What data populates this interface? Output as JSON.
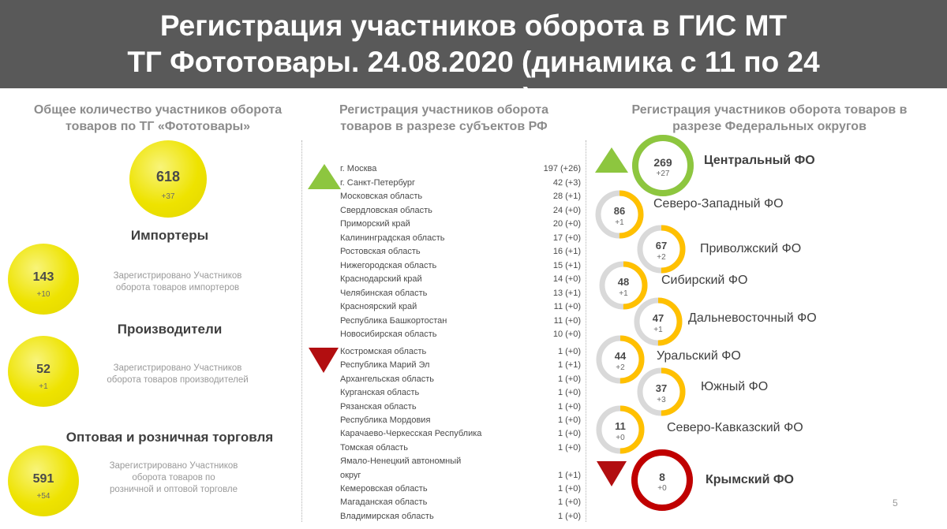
{
  "header": {
    "title_line1": "Регистрация участников оборота в ГИС МТ",
    "title_line2": "ТГ Фототовары. 24.08.2020 (динамика с 11 по 24",
    "title_line3": "августа)"
  },
  "left": {
    "title_line1": "Общее количество участников оборота",
    "title_line2": "товаров по ТГ «Фототовары»",
    "total": {
      "value": "618",
      "delta": "+37"
    },
    "sections": [
      {
        "heading": "Импортеры",
        "value": "143",
        "delta": "+10",
        "desc_line1": "Зарегистрировано Участников",
        "desc_line2": "оборота товаров импортеров",
        "desc_line3": ""
      },
      {
        "heading": "Производители",
        "value": "52",
        "delta": "+1",
        "desc_line1": "Зарегистрировано Участников",
        "desc_line2": "оборота товаров производителей",
        "desc_line3": ""
      },
      {
        "heading": "Оптовая и розничная торговля",
        "value": "591",
        "delta": "+54",
        "desc_line1": "Зарегистрировано Участников",
        "desc_line2": "оборота товаров по",
        "desc_line3": "розничной и оптовой торговле"
      }
    ]
  },
  "middle": {
    "title_line1": "Регистрация участников оборота",
    "title_line2": "товаров в разрезе субъектов РФ",
    "top_regions": [
      {
        "name": "г. Москва",
        "value": "197 (+26)"
      },
      {
        "name": "г. Санкт-Петербург",
        "value": "42 (+3)"
      },
      {
        "name": "Московская область",
        "value": "28 (+1)"
      },
      {
        "name": "Свердловская область",
        "value": "24 (+0)"
      },
      {
        "name": "Приморский край",
        "value": "20 (+0)"
      },
      {
        "name": "Калининградская область",
        "value": "17 (+0)"
      },
      {
        "name": "Ростовская область",
        "value": "16 (+1)"
      },
      {
        "name": "Нижегородская область",
        "value": "15 (+1)"
      },
      {
        "name": "Краснодарский край",
        "value": "14 (+0)"
      },
      {
        "name": "Челябинская область",
        "value": "13 (+1)"
      },
      {
        "name": "Красноярский край",
        "value": "11 (+0)"
      },
      {
        "name": "Республика Башкортостан",
        "value": "11 (+0)"
      },
      {
        "name": "Новосибирская область",
        "value": "10 (+0)"
      }
    ],
    "bottom_regions": [
      {
        "name": "Костромская область",
        "value": "1 (+0)"
      },
      {
        "name": "Республика Марий Эл",
        "value": "1 (+1)"
      },
      {
        "name": "Архангельская область",
        "value": "1 (+0)"
      },
      {
        "name": "Курганская область",
        "value": "1 (+0)"
      },
      {
        "name": "Рязанская область",
        "value": "1 (+0)"
      },
      {
        "name": "Республика Мордовия",
        "value": "1 (+0)"
      },
      {
        "name": "Карачаево-Черкесская Республика",
        "value": "1 (+0)"
      },
      {
        "name": "Томская область",
        "value": "1 (+0)"
      },
      {
        "name": "Ямало-Ненецкий автономный",
        "value": ""
      },
      {
        "name": "округ",
        "value": "1 (+1)"
      },
      {
        "name": "Кемеровская область",
        "value": "1 (+0)"
      },
      {
        "name": "Магаданская область",
        "value": "1 (+0)"
      },
      {
        "name": "Владимирская область",
        "value": "1 (+0)"
      }
    ]
  },
  "right": {
    "title_line1": "Регистрация участников оборота товаров в",
    "title_line2": "разрезе Федеральных округов",
    "districts": [
      {
        "name": "Центральный ФО",
        "value": "269",
        "delta": "+27",
        "fill_fraction": 1.0,
        "ring_color": "#8dc63f"
      },
      {
        "name": "Северо-Западный ФО",
        "value": "86",
        "delta": "+1",
        "fill_fraction": 0.5,
        "ring_color": "#ffc000"
      },
      {
        "name": "Приволжский ФО",
        "value": "67",
        "delta": "+2",
        "fill_fraction": 0.5,
        "ring_color": "#ffc000"
      },
      {
        "name": "Сибирский ФО",
        "value": "48",
        "delta": "+1",
        "fill_fraction": 0.5,
        "ring_color": "#ffc000"
      },
      {
        "name": "Дальневосточный ФО",
        "value": "47",
        "delta": "+1",
        "fill_fraction": 0.5,
        "ring_color": "#ffc000"
      },
      {
        "name": "Уральский ФО",
        "value": "44",
        "delta": "+2",
        "fill_fraction": 0.5,
        "ring_color": "#ffc000"
      },
      {
        "name": "Южный ФО",
        "value": "37",
        "delta": "+3",
        "fill_fraction": 0.5,
        "ring_color": "#ffc000"
      },
      {
        "name": "Северо-Кавказский ФО",
        "value": "11",
        "delta": "+0",
        "fill_fraction": 0.5,
        "ring_color": "#ffc000"
      },
      {
        "name": "Крымский ФО",
        "value": "8",
        "delta": "+0",
        "fill_fraction": 1.0,
        "ring_color": "#c00000"
      }
    ]
  },
  "colors": {
    "header_bg": "#595959",
    "up_arrow": "#8dc63f",
    "down_arrow": "#b20e10",
    "ball_yellow": "#eee300",
    "ring_track": "#d9d9d9"
  },
  "page_number": "5"
}
